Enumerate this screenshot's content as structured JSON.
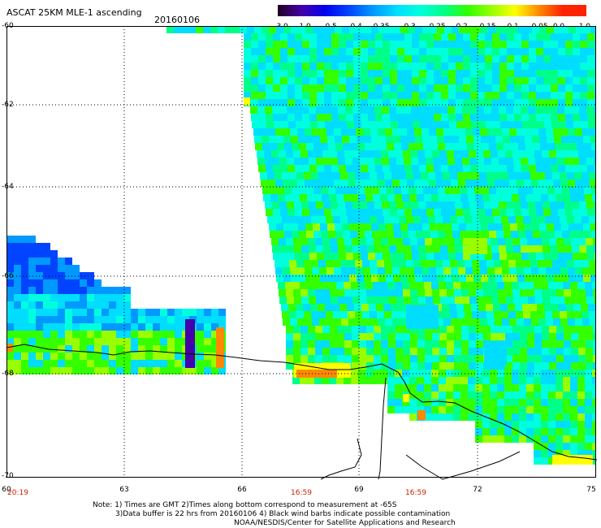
{
  "header": {
    "title": "ASCAT 25KM MLE-1 ascending",
    "date": "20160106"
  },
  "colorbar": {
    "labels": [
      "-3.0",
      "-1.0",
      "-0.5",
      "-0.4",
      "-0.35",
      "-0.3",
      "-0.25",
      "-0.2",
      "-0.15",
      "-0.1",
      "-0.05",
      "0.0",
      "1.0"
    ],
    "colors": [
      "#220022",
      "#4400aa",
      "#0000ee",
      "#0044ff",
      "#0099ff",
      "#00ddff",
      "#00ffdd",
      "#00ff88",
      "#33ff00",
      "#99ff00",
      "#ffff00",
      "#ff8800",
      "#ff2200"
    ]
  },
  "axes": {
    "y_labels": [
      "-60",
      "-62",
      "-64",
      "-66",
      "-68",
      "-70"
    ],
    "x_labels": [
      "60",
      "63",
      "66",
      "69",
      "72",
      "75"
    ],
    "time_labels": [
      "20:19",
      "16:59",
      "16:59"
    ]
  },
  "footer": {
    "line1": "Note: 1) Times are GMT 2)Times along bottom correspond to measurement at -65S",
    "line2": "3)Data buffer is 22 hrs from 20160106 4) Black wind barbs indicate possible contamination",
    "line3": "NOAA/NESDIS/Center for Satellite Applications and Research"
  }
}
